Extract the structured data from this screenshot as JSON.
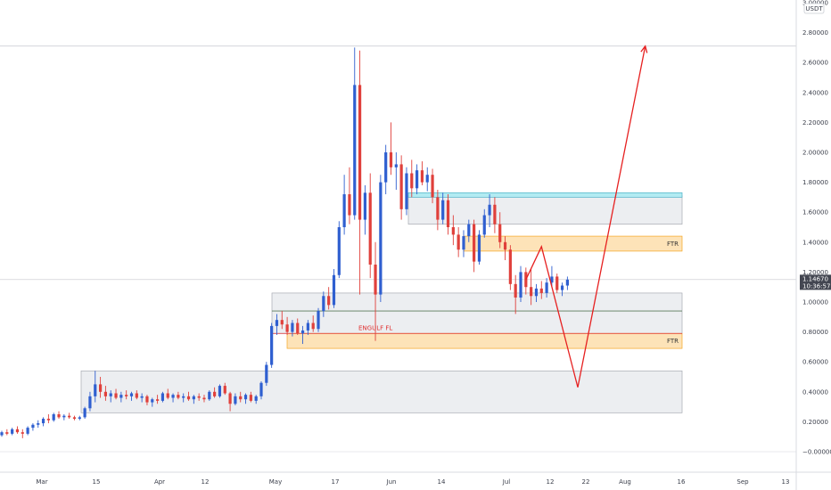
{
  "chart_data": {
    "type": "candlestick",
    "quote_unit": "USDT",
    "y_ticks": [
      "3.00000",
      "2.80000",
      "2.60000",
      "2.40000",
      "2.20000",
      "2.00000",
      "1.80000",
      "1.60000",
      "1.40000",
      "1.20000",
      "1.00000",
      "0.80000",
      "0.60000",
      "0.40000",
      "0.20000",
      "−0.00000"
    ],
    "y_range": [
      -0.05,
      3.0
    ],
    "x_ticks": [
      "Mar",
      "15",
      "Apr",
      "12",
      "May",
      "17",
      "Jun",
      "14",
      "Jul",
      "12",
      "22",
      "Aug",
      "16",
      "Sep",
      "13"
    ],
    "current_price": "1.14670",
    "countdown": "10:36:57",
    "candles": [
      {
        "o": 0.11,
        "h": 0.14,
        "l": 0.1,
        "c": 0.13
      },
      {
        "o": 0.13,
        "h": 0.15,
        "l": 0.11,
        "c": 0.12
      },
      {
        "o": 0.12,
        "h": 0.16,
        "l": 0.11,
        "c": 0.15
      },
      {
        "o": 0.15,
        "h": 0.17,
        "l": 0.12,
        "c": 0.13
      },
      {
        "o": 0.13,
        "h": 0.15,
        "l": 0.09,
        "c": 0.12
      },
      {
        "o": 0.12,
        "h": 0.17,
        "l": 0.11,
        "c": 0.16
      },
      {
        "o": 0.16,
        "h": 0.19,
        "l": 0.14,
        "c": 0.18
      },
      {
        "o": 0.18,
        "h": 0.21,
        "l": 0.16,
        "c": 0.19
      },
      {
        "o": 0.19,
        "h": 0.23,
        "l": 0.17,
        "c": 0.22
      },
      {
        "o": 0.22,
        "h": 0.25,
        "l": 0.19,
        "c": 0.21
      },
      {
        "o": 0.21,
        "h": 0.26,
        "l": 0.2,
        "c": 0.25
      },
      {
        "o": 0.25,
        "h": 0.27,
        "l": 0.22,
        "c": 0.23
      },
      {
        "o": 0.23,
        "h": 0.25,
        "l": 0.21,
        "c": 0.24
      },
      {
        "o": 0.24,
        "h": 0.26,
        "l": 0.22,
        "c": 0.23
      },
      {
        "o": 0.23,
        "h": 0.24,
        "l": 0.21,
        "c": 0.22
      },
      {
        "o": 0.22,
        "h": 0.24,
        "l": 0.21,
        "c": 0.23
      },
      {
        "o": 0.23,
        "h": 0.3,
        "l": 0.22,
        "c": 0.29
      },
      {
        "o": 0.29,
        "h": 0.4,
        "l": 0.27,
        "c": 0.37
      },
      {
        "o": 0.37,
        "h": 0.54,
        "l": 0.33,
        "c": 0.45
      },
      {
        "o": 0.45,
        "h": 0.5,
        "l": 0.36,
        "c": 0.4
      },
      {
        "o": 0.4,
        "h": 0.44,
        "l": 0.34,
        "c": 0.37
      },
      {
        "o": 0.37,
        "h": 0.41,
        "l": 0.33,
        "c": 0.39
      },
      {
        "o": 0.39,
        "h": 0.42,
        "l": 0.35,
        "c": 0.36
      },
      {
        "o": 0.36,
        "h": 0.4,
        "l": 0.33,
        "c": 0.38
      },
      {
        "o": 0.38,
        "h": 0.41,
        "l": 0.35,
        "c": 0.37
      },
      {
        "o": 0.37,
        "h": 0.4,
        "l": 0.34,
        "c": 0.39
      },
      {
        "o": 0.39,
        "h": 0.41,
        "l": 0.35,
        "c": 0.36
      },
      {
        "o": 0.36,
        "h": 0.39,
        "l": 0.33,
        "c": 0.37
      },
      {
        "o": 0.37,
        "h": 0.38,
        "l": 0.31,
        "c": 0.33
      },
      {
        "o": 0.33,
        "h": 0.36,
        "l": 0.3,
        "c": 0.35
      },
      {
        "o": 0.35,
        "h": 0.38,
        "l": 0.32,
        "c": 0.34
      },
      {
        "o": 0.34,
        "h": 0.4,
        "l": 0.33,
        "c": 0.39
      },
      {
        "o": 0.39,
        "h": 0.42,
        "l": 0.35,
        "c": 0.36
      },
      {
        "o": 0.36,
        "h": 0.39,
        "l": 0.33,
        "c": 0.38
      },
      {
        "o": 0.38,
        "h": 0.4,
        "l": 0.35,
        "c": 0.36
      },
      {
        "o": 0.36,
        "h": 0.39,
        "l": 0.33,
        "c": 0.37
      },
      {
        "o": 0.37,
        "h": 0.4,
        "l": 0.34,
        "c": 0.35
      },
      {
        "o": 0.35,
        "h": 0.38,
        "l": 0.32,
        "c": 0.37
      },
      {
        "o": 0.37,
        "h": 0.39,
        "l": 0.34,
        "c": 0.36
      },
      {
        "o": 0.36,
        "h": 0.38,
        "l": 0.33,
        "c": 0.35
      },
      {
        "o": 0.35,
        "h": 0.41,
        "l": 0.34,
        "c": 0.4
      },
      {
        "o": 0.4,
        "h": 0.43,
        "l": 0.36,
        "c": 0.37
      },
      {
        "o": 0.37,
        "h": 0.45,
        "l": 0.36,
        "c": 0.44
      },
      {
        "o": 0.44,
        "h": 0.46,
        "l": 0.38,
        "c": 0.39
      },
      {
        "o": 0.39,
        "h": 0.4,
        "l": 0.27,
        "c": 0.32
      },
      {
        "o": 0.32,
        "h": 0.39,
        "l": 0.31,
        "c": 0.37
      },
      {
        "o": 0.37,
        "h": 0.4,
        "l": 0.33,
        "c": 0.35
      },
      {
        "o": 0.35,
        "h": 0.39,
        "l": 0.32,
        "c": 0.38
      },
      {
        "o": 0.38,
        "h": 0.4,
        "l": 0.33,
        "c": 0.34
      },
      {
        "o": 0.34,
        "h": 0.38,
        "l": 0.32,
        "c": 0.37
      },
      {
        "o": 0.37,
        "h": 0.47,
        "l": 0.35,
        "c": 0.46
      },
      {
        "o": 0.46,
        "h": 0.6,
        "l": 0.44,
        "c": 0.58
      },
      {
        "o": 0.58,
        "h": 0.86,
        "l": 0.56,
        "c": 0.84
      },
      {
        "o": 0.84,
        "h": 0.92,
        "l": 0.78,
        "c": 0.88
      },
      {
        "o": 0.88,
        "h": 0.94,
        "l": 0.82,
        "c": 0.85
      },
      {
        "o": 0.85,
        "h": 0.9,
        "l": 0.78,
        "c": 0.8
      },
      {
        "o": 0.8,
        "h": 0.88,
        "l": 0.77,
        "c": 0.86
      },
      {
        "o": 0.86,
        "h": 0.89,
        "l": 0.78,
        "c": 0.79
      },
      {
        "o": 0.79,
        "h": 0.84,
        "l": 0.72,
        "c": 0.81
      },
      {
        "o": 0.81,
        "h": 0.88,
        "l": 0.78,
        "c": 0.86
      },
      {
        "o": 0.86,
        "h": 0.91,
        "l": 0.8,
        "c": 0.82
      },
      {
        "o": 0.82,
        "h": 0.96,
        "l": 0.8,
        "c": 0.94
      },
      {
        "o": 0.94,
        "h": 1.07,
        "l": 0.9,
        "c": 1.04
      },
      {
        "o": 1.04,
        "h": 1.1,
        "l": 0.95,
        "c": 0.98
      },
      {
        "o": 0.98,
        "h": 1.22,
        "l": 0.96,
        "c": 1.18
      },
      {
        "o": 1.18,
        "h": 1.54,
        "l": 1.16,
        "c": 1.5
      },
      {
        "o": 1.5,
        "h": 1.85,
        "l": 1.45,
        "c": 1.72
      },
      {
        "o": 1.72,
        "h": 1.9,
        "l": 1.52,
        "c": 1.58
      },
      {
        "o": 1.58,
        "h": 2.7,
        "l": 1.55,
        "c": 2.45
      },
      {
        "o": 2.45,
        "h": 2.68,
        "l": 1.05,
        "c": 1.55
      },
      {
        "o": 1.55,
        "h": 1.78,
        "l": 1.45,
        "c": 1.73
      },
      {
        "o": 1.73,
        "h": 1.86,
        "l": 1.16,
        "c": 1.25
      },
      {
        "o": 1.25,
        "h": 1.4,
        "l": 0.74,
        "c": 1.05
      },
      {
        "o": 1.05,
        "h": 1.85,
        "l": 1.0,
        "c": 1.8
      },
      {
        "o": 1.8,
        "h": 2.05,
        "l": 1.72,
        "c": 2.0
      },
      {
        "o": 2.0,
        "h": 2.2,
        "l": 1.85,
        "c": 1.9
      },
      {
        "o": 1.9,
        "h": 2.0,
        "l": 1.75,
        "c": 1.92
      },
      {
        "o": 1.92,
        "h": 1.98,
        "l": 1.55,
        "c": 1.62
      },
      {
        "o": 1.62,
        "h": 1.9,
        "l": 1.58,
        "c": 1.86
      },
      {
        "o": 1.86,
        "h": 1.95,
        "l": 1.7,
        "c": 1.76
      },
      {
        "o": 1.76,
        "h": 1.92,
        "l": 1.72,
        "c": 1.88
      },
      {
        "o": 1.88,
        "h": 1.94,
        "l": 1.78,
        "c": 1.8
      },
      {
        "o": 1.8,
        "h": 1.9,
        "l": 1.74,
        "c": 1.85
      },
      {
        "o": 1.85,
        "h": 1.89,
        "l": 1.66,
        "c": 1.7
      },
      {
        "o": 1.7,
        "h": 1.75,
        "l": 1.48,
        "c": 1.55
      },
      {
        "o": 1.55,
        "h": 1.73,
        "l": 1.52,
        "c": 1.68
      },
      {
        "o": 1.68,
        "h": 1.72,
        "l": 1.45,
        "c": 1.5
      },
      {
        "o": 1.5,
        "h": 1.58,
        "l": 1.38,
        "c": 1.45
      },
      {
        "o": 1.45,
        "h": 1.5,
        "l": 1.3,
        "c": 1.35
      },
      {
        "o": 1.35,
        "h": 1.48,
        "l": 1.3,
        "c": 1.44
      },
      {
        "o": 1.44,
        "h": 1.55,
        "l": 1.4,
        "c": 1.52
      },
      {
        "o": 1.52,
        "h": 1.55,
        "l": 1.2,
        "c": 1.27
      },
      {
        "o": 1.27,
        "h": 1.48,
        "l": 1.25,
        "c": 1.45
      },
      {
        "o": 1.45,
        "h": 1.62,
        "l": 1.43,
        "c": 1.58
      },
      {
        "o": 1.58,
        "h": 1.72,
        "l": 1.5,
        "c": 1.65
      },
      {
        "o": 1.65,
        "h": 1.7,
        "l": 1.46,
        "c": 1.52
      },
      {
        "o": 1.52,
        "h": 1.6,
        "l": 1.36,
        "c": 1.4
      },
      {
        "o": 1.4,
        "h": 1.44,
        "l": 1.28,
        "c": 1.35
      },
      {
        "o": 1.35,
        "h": 1.38,
        "l": 1.08,
        "c": 1.12
      },
      {
        "o": 1.12,
        "h": 1.18,
        "l": 0.92,
        "c": 1.03
      },
      {
        "o": 1.03,
        "h": 1.24,
        "l": 1.0,
        "c": 1.2
      },
      {
        "o": 1.2,
        "h": 1.23,
        "l": 1.05,
        "c": 1.1
      },
      {
        "o": 1.1,
        "h": 1.22,
        "l": 0.98,
        "c": 1.04
      },
      {
        "o": 1.04,
        "h": 1.12,
        "l": 1.0,
        "c": 1.09
      },
      {
        "o": 1.09,
        "h": 1.14,
        "l": 1.02,
        "c": 1.06
      },
      {
        "o": 1.06,
        "h": 1.16,
        "l": 1.03,
        "c": 1.13
      },
      {
        "o": 1.13,
        "h": 1.24,
        "l": 1.1,
        "c": 1.17
      },
      {
        "o": 1.17,
        "h": 1.19,
        "l": 1.06,
        "c": 1.08
      },
      {
        "o": 1.08,
        "h": 1.13,
        "l": 1.04,
        "c": 1.11
      },
      {
        "o": 1.11,
        "h": 1.17,
        "l": 1.08,
        "c": 1.15
      }
    ],
    "zones": [
      {
        "label": "",
        "color": "gray",
        "from": 0,
        "y_top": 1.71,
        "y_bottom": 1.52
      },
      {
        "label": "",
        "color": "cyan",
        "from": 0,
        "y_top": 1.73,
        "y_bottom": 1.7
      },
      {
        "label": "FTR",
        "color": "orange",
        "from": 0,
        "y_top": 1.44,
        "y_bottom": 1.34
      },
      {
        "label": "",
        "color": "gray",
        "from": 0,
        "y_top": 1.06,
        "y_bottom": 0.79
      },
      {
        "label": "FTR",
        "color": "orange",
        "from": 0,
        "y_top": 0.79,
        "y_bottom": 0.69
      },
      {
        "label": "",
        "color": "gray",
        "from": 0,
        "y_top": 0.54,
        "y_bottom": 0.26
      }
    ],
    "level_lines": [
      {
        "label": "",
        "color": "#5a7a5a",
        "y": 0.94
      },
      {
        "label": "ENGULF FL",
        "color": "#e03030",
        "y": 0.79
      }
    ],
    "horizontal_lines": [
      2.71,
      1.15
    ],
    "projection_path": [
      {
        "x": 101,
        "y": 1.15
      },
      {
        "x": 104,
        "y": 1.37
      },
      {
        "x": 111,
        "y": 0.43
      },
      {
        "x": 124,
        "y": 2.71
      }
    ]
  }
}
